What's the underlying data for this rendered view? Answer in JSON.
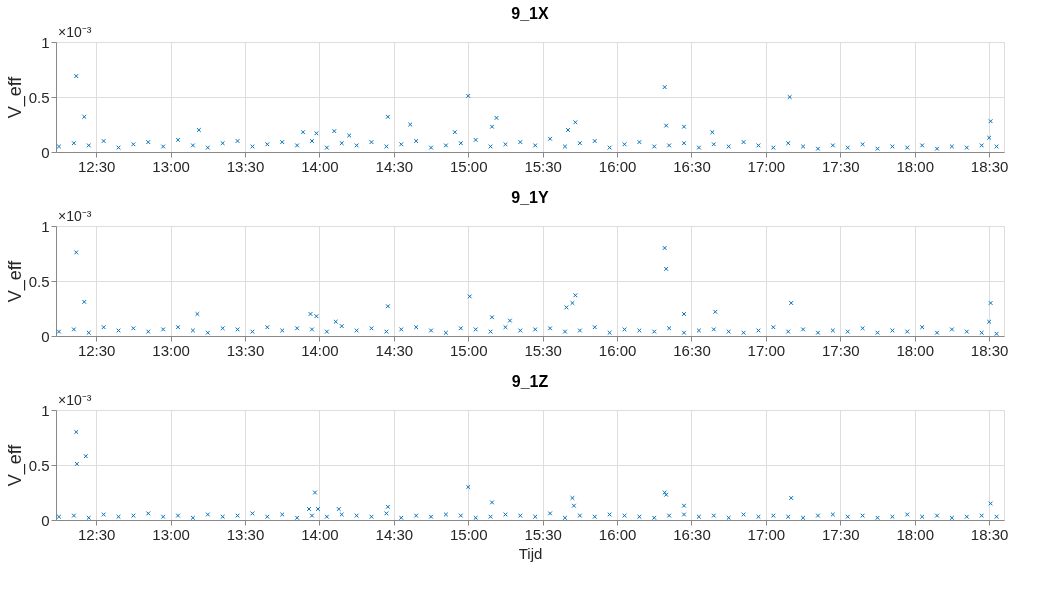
{
  "chart_data": [
    {
      "type": "scatter",
      "title": "9_1X",
      "ylabel": "V_eff",
      "annotations": [
        "×10⁻³"
      ],
      "xlim": [
        12.23,
        18.6
      ],
      "ylim": [
        0,
        1
      ],
      "yticks": [
        0,
        0.5,
        1
      ],
      "xticks": [
        {
          "value": 12.5,
          "label": "12:30"
        },
        {
          "value": 13,
          "label": "13:00"
        },
        {
          "value": 13.5,
          "label": "13:30"
        },
        {
          "value": 14,
          "label": "14:00"
        },
        {
          "value": 14.5,
          "label": "14:30"
        },
        {
          "value": 15,
          "label": "15:00"
        },
        {
          "value": 15.5,
          "label": "15:30"
        },
        {
          "value": 16,
          "label": "16:00"
        },
        {
          "value": 16.5,
          "label": "16:30"
        },
        {
          "value": 17,
          "label": "17:00"
        },
        {
          "value": 17.5,
          "label": "17:30"
        },
        {
          "value": 18,
          "label": "18:00"
        },
        {
          "value": 18.5,
          "label": "18:30"
        }
      ],
      "grid": true,
      "marker": "cross",
      "series": [
        {
          "color": "#0072bd",
          "x": [
            12.25,
            12.35,
            12.45,
            12.55,
            12.65,
            12.75,
            12.85,
            12.95,
            13.05,
            13.15,
            13.25,
            13.35,
            13.45,
            13.55,
            13.65,
            13.75,
            13.85,
            13.95,
            14.05,
            14.15,
            14.25,
            14.35,
            14.45,
            14.55,
            14.65,
            14.75,
            14.85,
            14.95,
            15.05,
            15.15,
            15.25,
            15.35,
            15.45,
            15.55,
            15.65,
            15.75,
            15.85,
            15.95,
            16.05,
            16.15,
            16.25,
            16.35,
            16.45,
            16.55,
            16.65,
            16.75,
            16.85,
            16.95,
            17.05,
            17.15,
            17.25,
            17.35,
            17.45,
            17.55,
            17.65,
            17.75,
            17.85,
            17.95,
            18.05,
            18.15,
            18.25,
            18.35,
            18.45,
            18.55,
            12.366,
            12.42,
            13.19,
            13.89,
            13.98,
            14.1,
            14.2,
            14.46,
            14.61,
            14.91,
            15.0,
            15.16,
            15.19,
            15.67,
            15.72,
            16.32,
            16.33,
            16.45,
            16.64,
            17.16,
            18.51,
            18.5
          ],
          "values": [
            0.05,
            0.08,
            0.06,
            0.1,
            0.04,
            0.07,
            0.09,
            0.05,
            0.11,
            0.06,
            0.04,
            0.08,
            0.1,
            0.05,
            0.07,
            0.09,
            0.06,
            0.1,
            0.04,
            0.08,
            0.06,
            0.09,
            0.05,
            0.07,
            0.1,
            0.04,
            0.06,
            0.08,
            0.11,
            0.05,
            0.07,
            0.09,
            0.06,
            0.12,
            0.05,
            0.08,
            0.1,
            0.04,
            0.07,
            0.09,
            0.05,
            0.06,
            0.08,
            0.04,
            0.07,
            0.05,
            0.09,
            0.06,
            0.04,
            0.08,
            0.05,
            0.03,
            0.06,
            0.04,
            0.07,
            0.03,
            0.05,
            0.04,
            0.06,
            0.03,
            0.05,
            0.04,
            0.06,
            0.05,
            0.69,
            0.32,
            0.2,
            0.18,
            0.17,
            0.19,
            0.15,
            0.32,
            0.25,
            0.18,
            0.51,
            0.23,
            0.31,
            0.2,
            0.27,
            0.59,
            0.24,
            0.23,
            0.18,
            0.5,
            0.28,
            0.13
          ]
        }
      ]
    },
    {
      "type": "scatter",
      "title": "9_1Y",
      "ylabel": "V_eff",
      "annotations": [
        "×10⁻³"
      ],
      "xlim": [
        12.23,
        18.6
      ],
      "ylim": [
        0,
        1
      ],
      "yticks": [
        0,
        0.5,
        1
      ],
      "xticks": [
        {
          "value": 12.5,
          "label": "12:30"
        },
        {
          "value": 13,
          "label": "13:00"
        },
        {
          "value": 13.5,
          "label": "13:30"
        },
        {
          "value": 14,
          "label": "14:00"
        },
        {
          "value": 14.5,
          "label": "14:30"
        },
        {
          "value": 15,
          "label": "15:00"
        },
        {
          "value": 15.5,
          "label": "15:30"
        },
        {
          "value": 16,
          "label": "16:00"
        },
        {
          "value": 16.5,
          "label": "16:30"
        },
        {
          "value": 17,
          "label": "17:00"
        },
        {
          "value": 17.5,
          "label": "17:30"
        },
        {
          "value": 18,
          "label": "18:00"
        },
        {
          "value": 18.5,
          "label": "18:30"
        }
      ],
      "grid": true,
      "marker": "cross",
      "series": [
        {
          "color": "#0072bd",
          "x": [
            12.25,
            12.35,
            12.45,
            12.55,
            12.65,
            12.75,
            12.85,
            12.95,
            13.05,
            13.15,
            13.25,
            13.35,
            13.45,
            13.55,
            13.65,
            13.75,
            13.85,
            13.95,
            14.05,
            14.15,
            14.25,
            14.35,
            14.45,
            14.55,
            14.65,
            14.75,
            14.85,
            14.95,
            15.05,
            15.15,
            15.25,
            15.35,
            15.45,
            15.55,
            15.65,
            15.75,
            15.85,
            15.95,
            16.05,
            16.15,
            16.25,
            16.35,
            16.45,
            16.55,
            16.65,
            16.75,
            16.85,
            16.95,
            17.05,
            17.15,
            17.25,
            17.35,
            17.45,
            17.55,
            17.65,
            17.75,
            17.85,
            17.95,
            18.05,
            18.15,
            18.25,
            18.35,
            18.45,
            18.55,
            12.366,
            12.42,
            13.18,
            13.94,
            13.98,
            14.11,
            14.46,
            15.01,
            15.16,
            15.28,
            15.66,
            15.7,
            15.72,
            16.32,
            16.33,
            16.45,
            16.66,
            17.17,
            18.51,
            18.5
          ],
          "values": [
            0.04,
            0.06,
            0.03,
            0.08,
            0.05,
            0.07,
            0.04,
            0.06,
            0.08,
            0.05,
            0.03,
            0.07,
            0.06,
            0.04,
            0.08,
            0.05,
            0.07,
            0.06,
            0.04,
            0.09,
            0.05,
            0.07,
            0.04,
            0.06,
            0.08,
            0.05,
            0.03,
            0.07,
            0.06,
            0.04,
            0.08,
            0.05,
            0.06,
            0.07,
            0.04,
            0.05,
            0.08,
            0.03,
            0.06,
            0.05,
            0.04,
            0.07,
            0.03,
            0.05,
            0.06,
            0.04,
            0.03,
            0.05,
            0.08,
            0.04,
            0.06,
            0.03,
            0.05,
            0.04,
            0.07,
            0.03,
            0.05,
            0.04,
            0.08,
            0.03,
            0.06,
            0.04,
            0.03,
            0.02,
            0.76,
            0.31,
            0.2,
            0.2,
            0.18,
            0.13,
            0.27,
            0.36,
            0.17,
            0.14,
            0.26,
            0.3,
            0.37,
            0.8,
            0.61,
            0.2,
            0.22,
            0.3,
            0.3,
            0.13
          ]
        }
      ]
    },
    {
      "type": "scatter",
      "title": "9_1Z",
      "ylabel": "V_eff",
      "xlabel": "Tijd",
      "annotations": [
        "×10⁻³"
      ],
      "xlim": [
        12.23,
        18.6
      ],
      "ylim": [
        0,
        1
      ],
      "yticks": [
        0,
        0.5,
        1
      ],
      "xticks": [
        {
          "value": 12.5,
          "label": "12:30"
        },
        {
          "value": 13,
          "label": "13:00"
        },
        {
          "value": 13.5,
          "label": "13:30"
        },
        {
          "value": 14,
          "label": "14:00"
        },
        {
          "value": 14.5,
          "label": "14:30"
        },
        {
          "value": 15,
          "label": "15:00"
        },
        {
          "value": 15.5,
          "label": "15:30"
        },
        {
          "value": 16,
          "label": "16:00"
        },
        {
          "value": 16.5,
          "label": "16:30"
        },
        {
          "value": 17,
          "label": "17:00"
        },
        {
          "value": 17.5,
          "label": "17:30"
        },
        {
          "value": 18,
          "label": "18:00"
        },
        {
          "value": 18.5,
          "label": "18:30"
        }
      ],
      "grid": true,
      "marker": "cross",
      "series": [
        {
          "color": "#0072bd",
          "x": [
            12.25,
            12.35,
            12.45,
            12.55,
            12.65,
            12.75,
            12.85,
            12.95,
            13.05,
            13.15,
            13.25,
            13.35,
            13.45,
            13.55,
            13.65,
            13.75,
            13.85,
            13.95,
            14.05,
            14.15,
            14.25,
            14.35,
            14.45,
            14.55,
            14.65,
            14.75,
            14.85,
            14.95,
            15.05,
            15.15,
            15.25,
            15.35,
            15.45,
            15.55,
            15.65,
            15.75,
            15.85,
            15.95,
            16.05,
            16.15,
            16.25,
            16.35,
            16.45,
            16.55,
            16.65,
            16.75,
            16.85,
            16.95,
            17.05,
            17.15,
            17.25,
            17.35,
            17.45,
            17.55,
            17.65,
            17.75,
            17.85,
            17.95,
            18.05,
            18.15,
            18.25,
            18.35,
            18.45,
            18.55,
            12.366,
            12.37,
            12.43,
            13.93,
            13.97,
            13.99,
            14.13,
            14.46,
            15.0,
            15.16,
            15.7,
            15.71,
            16.32,
            16.33,
            16.45,
            17.17,
            18.51
          ],
          "values": [
            0.03,
            0.04,
            0.02,
            0.05,
            0.03,
            0.04,
            0.06,
            0.03,
            0.04,
            0.02,
            0.05,
            0.03,
            0.04,
            0.06,
            0.03,
            0.05,
            0.02,
            0.04,
            0.03,
            0.05,
            0.04,
            0.03,
            0.06,
            0.02,
            0.04,
            0.03,
            0.05,
            0.04,
            0.02,
            0.03,
            0.05,
            0.04,
            0.03,
            0.06,
            0.02,
            0.04,
            0.03,
            0.05,
            0.04,
            0.03,
            0.02,
            0.04,
            0.05,
            0.03,
            0.04,
            0.02,
            0.05,
            0.03,
            0.04,
            0.03,
            0.02,
            0.04,
            0.05,
            0.03,
            0.04,
            0.02,
            0.03,
            0.05,
            0.03,
            0.04,
            0.02,
            0.03,
            0.04,
            0.03,
            0.8,
            0.51,
            0.58,
            0.1,
            0.25,
            0.1,
            0.1,
            0.12,
            0.3,
            0.16,
            0.2,
            0.13,
            0.25,
            0.23,
            0.13,
            0.2,
            0.15
          ]
        }
      ]
    }
  ]
}
